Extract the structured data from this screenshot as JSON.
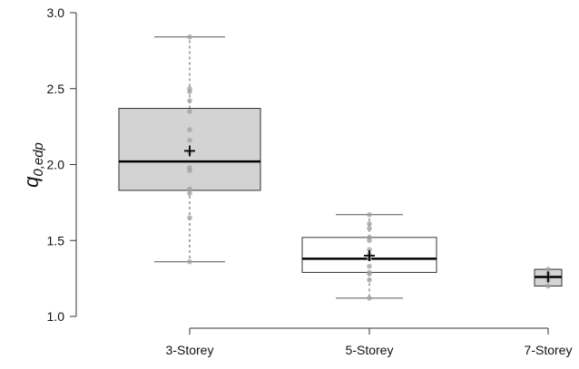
{
  "chart_data": {
    "type": "boxplot",
    "title": "",
    "xlabel": "",
    "ylabel": "q",
    "ylabel_subscript": "0,edp",
    "ylim": [
      1.0,
      3.0
    ],
    "yticks": [
      1.0,
      1.5,
      2.0,
      2.5,
      3.0
    ],
    "ytick_labels": [
      "1.0",
      "1.5",
      "2.0",
      "2.5",
      "3.0"
    ],
    "grid": false,
    "legend": "none",
    "categories": [
      "3-Storey",
      "5-Storey",
      "7-Storey"
    ],
    "boxes": [
      {
        "category": "3-Storey",
        "whisker_low": 1.36,
        "q1": 1.83,
        "median": 2.02,
        "q3": 2.37,
        "whisker_high": 2.84,
        "mean": 2.09,
        "fill": "#d3d3d3",
        "points": [
          2.84,
          2.5,
          2.48,
          2.42,
          2.35,
          2.23,
          2.16,
          2.08,
          1.98,
          1.96,
          1.84,
          1.81,
          1.65,
          1.36
        ]
      },
      {
        "category": "5-Storey",
        "whisker_low": 1.12,
        "q1": 1.29,
        "median": 1.38,
        "q3": 1.52,
        "whisker_high": 1.67,
        "mean": 1.4,
        "fill": "#ffffff",
        "points": [
          1.67,
          1.61,
          1.58,
          1.52,
          1.5,
          1.44,
          1.41,
          1.38,
          1.33,
          1.29,
          1.28,
          1.24,
          1.12
        ]
      },
      {
        "category": "7-Storey",
        "whisker_low": 1.2,
        "q1": 1.2,
        "median": 1.26,
        "q3": 1.31,
        "whisker_high": 1.31,
        "mean": 1.26,
        "fill": "#d3d3d3",
        "points": [
          1.31,
          1.28,
          1.24,
          1.2
        ]
      }
    ],
    "colors": {
      "box_outline": "#333333",
      "median": "#000000",
      "points": "#a0a0a0",
      "whisker": "#555555",
      "axis": "#333333"
    }
  }
}
